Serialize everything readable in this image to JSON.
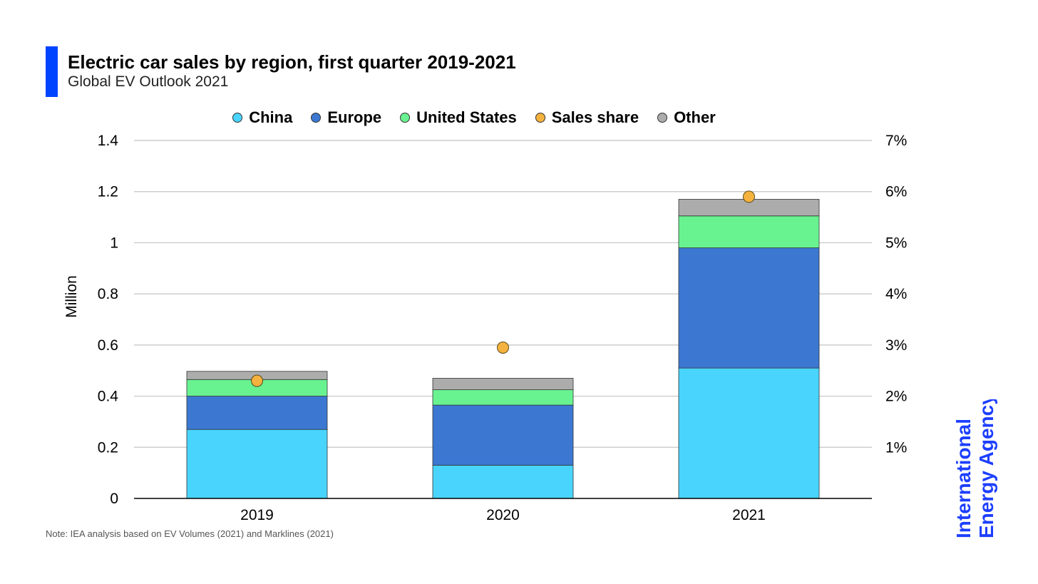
{
  "header": {
    "title": "Electric car sales by region, first quarter 2019-2021",
    "subtitle": "Global EV Outlook 2021",
    "accent_color": "#0044ff"
  },
  "legend": [
    {
      "label": "China",
      "color": "#48d4fc"
    },
    {
      "label": "Europe",
      "color": "#3c78d2"
    },
    {
      "label": "United States",
      "color": "#69f290"
    },
    {
      "label": "Sales share",
      "color": "#f5b23e"
    },
    {
      "label": "Other",
      "color": "#acacac"
    }
  ],
  "note": "Note: IEA analysis based on EV Volumes (2021) and Marklines (2021)",
  "brand": {
    "line1": "International",
    "line2": "Energy Agency",
    "color": "#1d3fff"
  },
  "chart_data": {
    "type": "bar",
    "stacked": true,
    "title": "Electric car sales by region, first quarter 2019-2021",
    "subtitle": "Global EV Outlook 2021",
    "categories": [
      "2019",
      "2020",
      "2021"
    ],
    "series": [
      {
        "name": "China",
        "values": [
          0.27,
          0.13,
          0.51
        ],
        "color": "#48d4fc"
      },
      {
        "name": "Europe",
        "values": [
          0.13,
          0.235,
          0.47
        ],
        "color": "#3c78d2"
      },
      {
        "name": "United States",
        "values": [
          0.065,
          0.06,
          0.125
        ],
        "color": "#69f290"
      },
      {
        "name": "Other",
        "values": [
          0.032,
          0.045,
          0.065
        ],
        "color": "#acacac"
      }
    ],
    "secondary_series": {
      "name": "Sales share",
      "type": "scatter",
      "values": [
        2.3,
        2.95,
        5.9
      ],
      "color": "#f5b23e"
    },
    "ylabel": "Million",
    "ylim": [
      0,
      1.4
    ],
    "yticks": [
      "0",
      "0.2",
      "0.4",
      "0.6",
      "0.8",
      "1",
      "1.2",
      "1.4"
    ],
    "y2lim": [
      0,
      7
    ],
    "y2ticks": [
      "",
      "1%",
      "2%",
      "3%",
      "4%",
      "5%",
      "6%",
      "7%"
    ],
    "grid": true,
    "legend_position": "top"
  }
}
